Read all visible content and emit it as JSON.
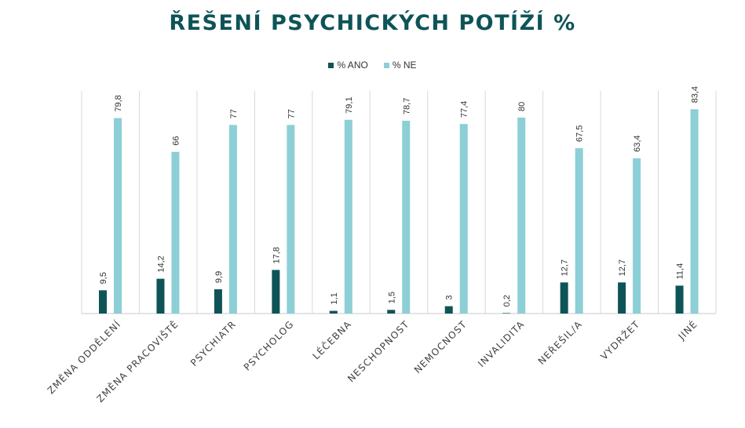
{
  "chart_data": {
    "type": "bar",
    "title": "ŘEŠENÍ PSYCHICKÝCH POTÍŽÍ %",
    "categories": [
      "ZMĚNA ODDĚLENÍ",
      "ZMĚNA PRACOVIŠTĚ",
      "PSYCHIATR",
      "PSYCHOLOG",
      "LÉČEBNA",
      "NESCHOPNOST",
      "NEMOCNOST",
      "INVALIDITA",
      "NEŘEŠIL/A",
      "VYDRŽET",
      "JINÉ"
    ],
    "series": [
      {
        "name": "% ANO",
        "color": "#0e5457",
        "values": [
          9.5,
          14.2,
          9.9,
          17.8,
          1.1,
          1.5,
          3,
          0.2,
          12.7,
          12.7,
          11.4
        ],
        "labels": [
          "9,5",
          "14,2",
          "9,9",
          "17,8",
          "1,1",
          "1,5",
          "3",
          "0,2",
          "12,7",
          "12,7",
          "11,4"
        ]
      },
      {
        "name": "% NE",
        "color": "#8ccfd6",
        "values": [
          79.8,
          66,
          77,
          77,
          79.1,
          78.7,
          77.4,
          80,
          67.5,
          63.4,
          83.4
        ],
        "labels": [
          "79,8",
          "66",
          "77",
          "77",
          "79,1",
          "78,7",
          "77,4",
          "80",
          "67,5",
          "63,4",
          "83,4"
        ]
      }
    ],
    "ylim": [
      0,
      95
    ],
    "grid": "vertical category separators",
    "legend": "top-center"
  }
}
